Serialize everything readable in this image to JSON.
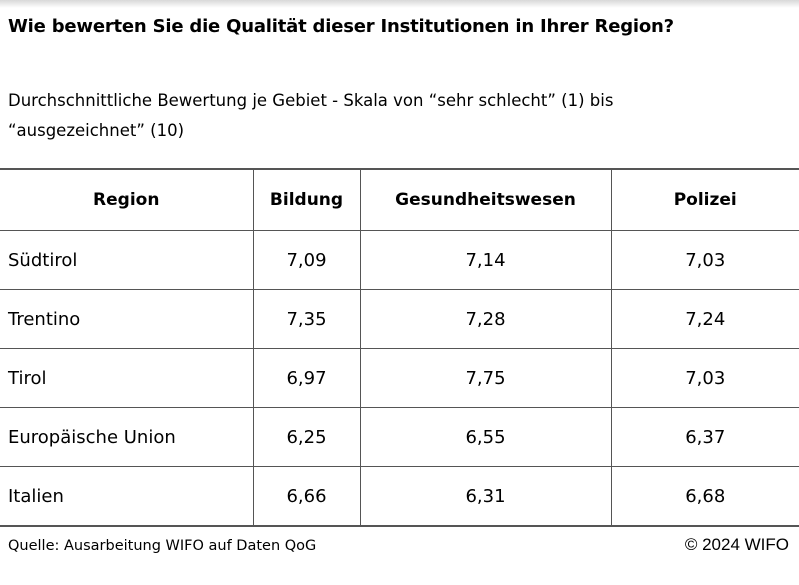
{
  "header": {
    "title": "Wie bewerten Sie die Qualität dieser Institutionen in Ihrer Region?",
    "subtitle": "Durchschnittliche Bewertung je Gebiet - Skala von “sehr schlecht” (1) bis “ausgezeichnet” (10)"
  },
  "table": {
    "columns": [
      "Region",
      "Bildung",
      "Gesundheitswesen",
      "Polizei"
    ],
    "rows": [
      [
        "Südtirol",
        "7,09",
        "7,14",
        "7,03"
      ],
      [
        "Trentino",
        "7,35",
        "7,28",
        "7,24"
      ],
      [
        "Tirol",
        "6,97",
        "7,75",
        "7,03"
      ],
      [
        "Europäische Union",
        "6,25",
        "6,55",
        "6,37"
      ],
      [
        "Italien",
        "6,66",
        "6,31",
        "6,68"
      ]
    ]
  },
  "footer": {
    "source": "Quelle: Ausarbeitung WIFO auf Daten QoG",
    "copyright": "© 2024 WIFO"
  }
}
